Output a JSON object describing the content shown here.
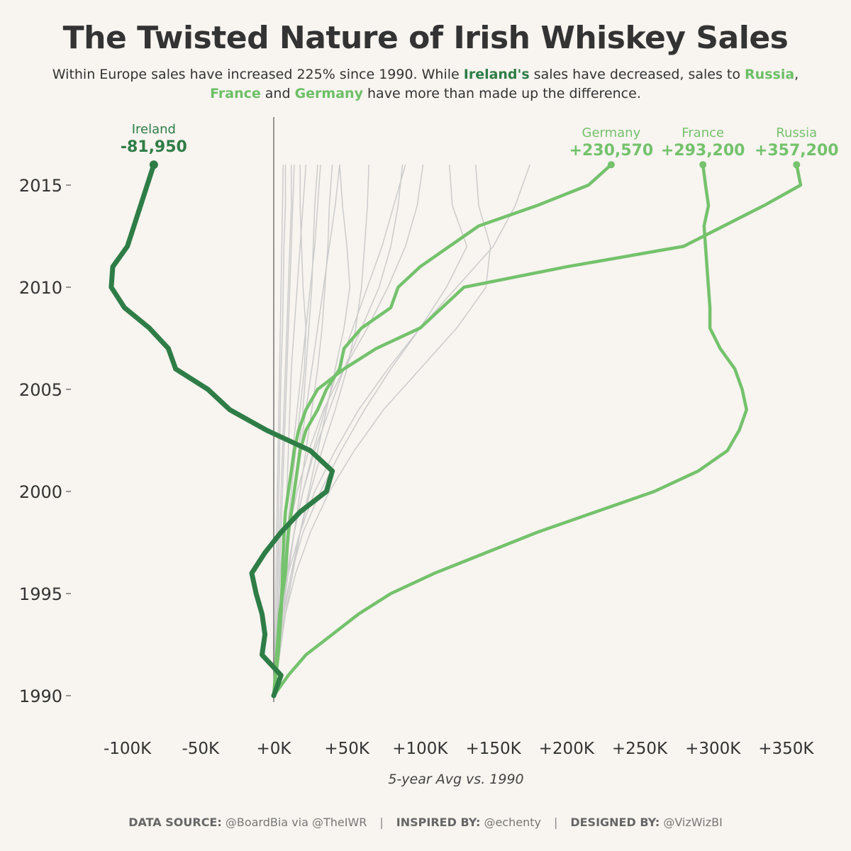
{
  "title": "The Twisted Nature of Irish Whiskey Sales",
  "subtitle": {
    "part1": "Within Europe sales have increased 225% since 1990. While ",
    "ireland": "Ireland's",
    "part2": " sales have decreased, sales to ",
    "russia": "Russia",
    "part3": ",",
    "france": "France",
    "part4": " and ",
    "germany": "Germany",
    "part5": " have more than made up the difference."
  },
  "footer": {
    "source_label": "DATA SOURCE:",
    "source_value": " @BoardBia via @TheIWR",
    "separator": "|",
    "inspired_label": "INSPIRED BY:",
    "inspired_value": " @echenty",
    "designed_label": "DESIGNED BY:",
    "designed_value": " @VizWizBI"
  },
  "chart_data": {
    "type": "line",
    "xlabel": "5-year Avg vs. 1990",
    "ylabel": "",
    "xlim": [
      -115000,
      375000
    ],
    "ylim": [
      1989,
      2017
    ],
    "x_ticks": [
      -100000,
      -50000,
      0,
      50000,
      100000,
      150000,
      200000,
      250000,
      300000,
      350000
    ],
    "x_tick_labels": [
      "-100K",
      "-50K",
      "+0K",
      "+50K",
      "+100K",
      "+150K",
      "+200K",
      "+250K",
      "+300K",
      "+350K"
    ],
    "y_ticks": [
      1990,
      1995,
      2000,
      2005,
      2010,
      2015
    ],
    "y_tick_labels": [
      "1990",
      "1995",
      "2000",
      "2005",
      "2010",
      "2015"
    ],
    "colors": {
      "ireland": "#2e7d46",
      "highlight": "#74c26c",
      "other": "#cccccc",
      "zero_line": "#555555"
    },
    "highlighted_series": [
      {
        "name": "Ireland",
        "label": "-81,950",
        "color": "#2e7d46",
        "x": [
          0,
          5000,
          -8000,
          -6000,
          -8000,
          -12000,
          -15000,
          -6000,
          5000,
          18000,
          36000,
          40000,
          25000,
          -5000,
          -30000,
          -45000,
          -67000,
          -72000,
          -85000,
          -102000,
          -111000,
          -110000,
          -100000,
          -81950
        ],
        "y": [
          1990,
          1991,
          1992,
          1993,
          1994,
          1995,
          1996,
          1997,
          1998,
          1999,
          2000,
          2001,
          2002,
          2003,
          2004,
          2005,
          2006,
          2007,
          2008,
          2009,
          2010,
          2011,
          2012,
          2016
        ]
      },
      {
        "name": "Germany",
        "label": "+230,570",
        "color": "#74c26c",
        "x": [
          0,
          2000,
          4000,
          8000,
          10000,
          12000,
          14000,
          16000,
          18000,
          22000,
          30000,
          36000,
          45000,
          48000,
          60000,
          80000,
          85000,
          100000,
          140000,
          180000,
          215000,
          230570
        ],
        "y": [
          1990,
          1992,
          1994,
          1996,
          1998,
          1999,
          2000,
          2001,
          2002,
          2003,
          2004,
          2005,
          2006,
          2007,
          2008,
          2009,
          2010,
          2011,
          2013,
          2014,
          2015,
          2016
        ]
      },
      {
        "name": "France",
        "label": "+293,200",
        "color": "#74c26c",
        "x": [
          0,
          10000,
          22000,
          40000,
          58000,
          80000,
          110000,
          145000,
          180000,
          220000,
          260000,
          290000,
          310000,
          318000,
          323000,
          320000,
          315000,
          305000,
          298000,
          298000,
          296000,
          294000,
          297000,
          295000,
          293200
        ],
        "y": [
          1990,
          1991,
          1992,
          1993,
          1994,
          1995,
          1996,
          1997,
          1998,
          1999,
          2000,
          2001,
          2002,
          2003,
          2004,
          2005,
          2006,
          2007,
          2008,
          2009,
          2011,
          2013,
          2014,
          2015,
          2016
        ]
      },
      {
        "name": "Russia",
        "label": "+357,200",
        "color": "#74c26c",
        "x": [
          0,
          3000,
          5000,
          6000,
          7000,
          8000,
          10000,
          12000,
          14000,
          17000,
          22000,
          30000,
          48000,
          70000,
          100000,
          130000,
          200000,
          280000,
          335000,
          360000,
          357200
        ],
        "y": [
          1990,
          1992,
          1994,
          1996,
          1998,
          1999,
          2000,
          2001,
          2002,
          2003,
          2004,
          2005,
          2006,
          2007,
          2008,
          2010,
          2011,
          2012,
          2014,
          2015,
          2016
        ]
      }
    ],
    "other_series": [
      {
        "x": [
          0,
          1000,
          2000,
          2500,
          3000,
          3500,
          4000,
          4500,
          5000,
          6000,
          6500,
          7000,
          8000,
          8000
        ],
        "y": [
          1990,
          1992,
          1994,
          1996,
          1998,
          2000,
          2002,
          2004,
          2006,
          2008,
          2010,
          2012,
          2014,
          2016
        ]
      },
      {
        "x": [
          0,
          1500,
          3000,
          4000,
          5000,
          6000,
          7000,
          8000,
          9000,
          10000,
          11000,
          12000,
          13000,
          14000
        ],
        "y": [
          1990,
          1992,
          1994,
          1996,
          1998,
          2000,
          2002,
          2004,
          2006,
          2008,
          2010,
          2012,
          2014,
          2016
        ]
      },
      {
        "x": [
          0,
          2000,
          4000,
          6000,
          8000,
          9000,
          10000,
          11000,
          12000,
          14000,
          16000,
          18000,
          20000,
          22000
        ],
        "y": [
          1990,
          1992,
          1994,
          1996,
          1998,
          2000,
          2002,
          2004,
          2006,
          2008,
          2010,
          2012,
          2014,
          2016
        ]
      },
      {
        "x": [
          0,
          2000,
          5000,
          8000,
          11000,
          14000,
          17000,
          20000,
          22000,
          24000,
          26000,
          27000,
          28000,
          30000
        ],
        "y": [
          1990,
          1992,
          1994,
          1996,
          1998,
          2000,
          2002,
          2004,
          2006,
          2008,
          2010,
          2012,
          2014,
          2016
        ]
      },
      {
        "x": [
          0,
          3000,
          6000,
          10000,
          14000,
          18000,
          22000,
          26000,
          30000,
          33000,
          35000,
          37000,
          38000,
          40000
        ],
        "y": [
          1990,
          1992,
          1994,
          1996,
          1998,
          2000,
          2002,
          2004,
          2006,
          2008,
          2010,
          2012,
          2014,
          2016
        ]
      },
      {
        "x": [
          0,
          4000,
          8000,
          13000,
          18000,
          24000,
          30000,
          36000,
          42000,
          48000,
          52000,
          50000,
          47000,
          45000
        ],
        "y": [
          1990,
          1992,
          1994,
          1996,
          1998,
          2000,
          2002,
          2004,
          2006,
          2008,
          2010,
          2012,
          2014,
          2016
        ]
      },
      {
        "x": [
          0,
          3000,
          7000,
          12000,
          18000,
          25000,
          33000,
          42000,
          50000,
          56000,
          60000,
          62000,
          64000,
          65000
        ],
        "y": [
          1990,
          1992,
          1994,
          1996,
          1998,
          2000,
          2002,
          2004,
          2006,
          2008,
          2010,
          2012,
          2014,
          2016
        ]
      },
      {
        "x": [
          0,
          2000,
          5000,
          9000,
          14000,
          20000,
          28000,
          38000,
          48000,
          60000,
          72000,
          80000,
          85000,
          88000
        ],
        "y": [
          1990,
          1992,
          1994,
          1996,
          1998,
          2000,
          2002,
          2004,
          2006,
          2008,
          2010,
          2012,
          2014,
          2016
        ]
      },
      {
        "x": [
          0,
          1000,
          3000,
          6000,
          10000,
          16000,
          24000,
          34000,
          48000,
          64000,
          78000,
          90000,
          98000,
          102000
        ],
        "y": [
          1990,
          1992,
          1994,
          1996,
          1998,
          2000,
          2002,
          2004,
          2006,
          2008,
          2010,
          2012,
          2014,
          2016
        ]
      },
      {
        "x": [
          0,
          2000,
          6000,
          12000,
          20000,
          32000,
          46000,
          62000,
          80000,
          100000,
          118000,
          132000,
          122000,
          120000
        ],
        "y": [
          1990,
          1992,
          1994,
          1996,
          1998,
          2000,
          2002,
          2004,
          2006,
          2008,
          2010,
          2012,
          2014,
          2016
        ]
      },
      {
        "x": [
          0,
          3000,
          8000,
          15000,
          25000,
          38000,
          55000,
          75000,
          100000,
          125000,
          145000,
          148000,
          140000,
          138000
        ],
        "y": [
          1990,
          1992,
          1994,
          1996,
          1998,
          2000,
          2002,
          2004,
          2006,
          2008,
          2010,
          2012,
          2014,
          2016
        ]
      },
      {
        "x": [
          0,
          2000,
          5000,
          10000,
          18000,
          28000,
          42000,
          58000,
          78000,
          100000,
          125000,
          150000,
          165000,
          175000
        ],
        "y": [
          1990,
          1992,
          1994,
          1996,
          1998,
          2000,
          2002,
          2004,
          2006,
          2008,
          2010,
          2012,
          2014,
          2016
        ]
      },
      {
        "x": [
          0,
          1000,
          2000,
          3000,
          4000,
          5000,
          6000,
          7000,
          8000,
          9000,
          10000,
          11000,
          12000,
          12000
        ],
        "y": [
          1990,
          1992,
          1994,
          1996,
          1998,
          2000,
          2002,
          2004,
          2006,
          2008,
          2010,
          2012,
          2014,
          2016
        ]
      },
      {
        "x": [
          0,
          500,
          1000,
          1500,
          2000,
          2500,
          3000,
          3500,
          4000,
          4500,
          5000,
          5500,
          6000,
          6500
        ],
        "y": [
          1990,
          1992,
          1994,
          1996,
          1998,
          2000,
          2002,
          2004,
          2006,
          2008,
          2010,
          2012,
          2014,
          2016
        ]
      },
      {
        "x": [
          0,
          2000,
          4000,
          7000,
          10000,
          14000,
          18000,
          22000,
          26000,
          30000,
          34000,
          38000,
          42000,
          45000
        ],
        "y": [
          1990,
          1992,
          1994,
          1996,
          1998,
          2000,
          2002,
          2004,
          2006,
          2008,
          2010,
          2012,
          2014,
          2016
        ]
      },
      {
        "x": [
          0,
          1500,
          3500,
          6000,
          9000,
          12000,
          15000,
          18000,
          21000,
          22000,
          20000,
          19000,
          18000,
          18000
        ],
        "y": [
          1990,
          1992,
          1994,
          1996,
          1998,
          2000,
          2002,
          2004,
          2006,
          2008,
          2010,
          2012,
          2014,
          2016
        ]
      },
      {
        "x": [
          0,
          2000,
          5000,
          9000,
          14000,
          20000,
          27000,
          35000,
          44000,
          54000,
          64000,
          74000,
          82000,
          90000
        ],
        "y": [
          1990,
          1992,
          1994,
          1996,
          1998,
          2000,
          2002,
          2004,
          2006,
          2008,
          2010,
          2012,
          2014,
          2016
        ]
      },
      {
        "x": [
          0,
          1000,
          2500,
          4500,
          7000,
          10000,
          13000,
          16000,
          19000,
          22000,
          25000,
          28000,
          30000,
          32000
        ],
        "y": [
          1990,
          1992,
          1994,
          1996,
          1998,
          2000,
          2002,
          2004,
          2006,
          2008,
          2010,
          2012,
          2014,
          2016
        ]
      }
    ]
  }
}
